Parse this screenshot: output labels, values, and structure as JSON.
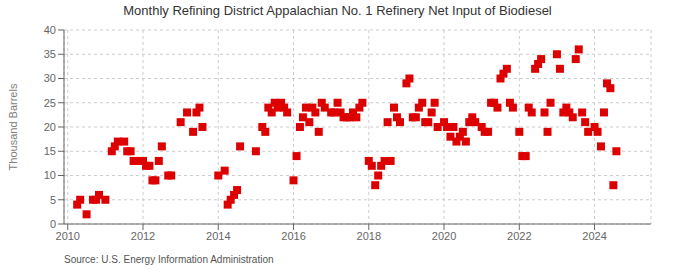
{
  "chart_data": {
    "type": "scatter",
    "title": "Monthly Refining District Appalachian No. 1 Refinery Net Input of Biodiesel",
    "y_label": "Thousand Barrels",
    "annotations": [
      "Source: U.S. Energy Information Administration"
    ],
    "color": "#dd0000",
    "marker": "square",
    "grid": true,
    "xlim": [
      2009.9,
      2025.5
    ],
    "xticks": [
      2010,
      2012,
      2014,
      2016,
      2018,
      2020,
      2022,
      2024
    ],
    "ylim": [
      0,
      40
    ],
    "yticks": [
      0,
      5,
      10,
      15,
      20,
      25,
      30,
      35,
      40
    ],
    "x": [
      2010.25,
      2010.33,
      2010.5,
      2010.67,
      2010.75,
      2010.83,
      2011.0,
      2011.17,
      2011.25,
      2011.33,
      2011.5,
      2011.58,
      2011.67,
      2011.75,
      2011.83,
      2012.0,
      2012.08,
      2012.17,
      2012.25,
      2012.33,
      2012.42,
      2012.5,
      2012.67,
      2012.75,
      2013.0,
      2013.17,
      2013.33,
      2013.42,
      2013.5,
      2013.58,
      2014.0,
      2014.17,
      2014.25,
      2014.33,
      2014.42,
      2014.5,
      2014.58,
      2015.0,
      2015.17,
      2015.25,
      2015.33,
      2015.42,
      2015.5,
      2015.58,
      2015.67,
      2015.75,
      2015.83,
      2016.0,
      2016.08,
      2016.17,
      2016.25,
      2016.33,
      2016.42,
      2016.5,
      2016.58,
      2016.67,
      2016.75,
      2016.83,
      2017.0,
      2017.08,
      2017.17,
      2017.25,
      2017.33,
      2017.42,
      2017.5,
      2017.58,
      2017.67,
      2017.75,
      2017.83,
      2018.0,
      2018.08,
      2018.17,
      2018.25,
      2018.33,
      2018.42,
      2018.5,
      2018.58,
      2018.67,
      2018.75,
      2018.83,
      2019.0,
      2019.08,
      2019.17,
      2019.25,
      2019.33,
      2019.42,
      2019.5,
      2019.58,
      2019.67,
      2019.75,
      2019.83,
      2020.0,
      2020.08,
      2020.17,
      2020.25,
      2020.33,
      2020.42,
      2020.5,
      2020.58,
      2020.67,
      2020.75,
      2020.83,
      2021.0,
      2021.08,
      2021.17,
      2021.25,
      2021.33,
      2021.42,
      2021.5,
      2021.58,
      2021.67,
      2021.75,
      2021.83,
      2022.0,
      2022.08,
      2022.17,
      2022.25,
      2022.33,
      2022.42,
      2022.5,
      2022.58,
      2022.67,
      2022.75,
      2022.83,
      2023.0,
      2023.08,
      2023.17,
      2023.25,
      2023.33,
      2023.42,
      2023.5,
      2023.58,
      2023.67,
      2023.75,
      2023.83,
      2024.0,
      2024.08,
      2024.17,
      2024.25,
      2024.33,
      2024.42,
      2024.5,
      2024.58
    ],
    "values": [
      4,
      5,
      2,
      5,
      5,
      6,
      5,
      15,
      16,
      17,
      17,
      15,
      15,
      13,
      13,
      13,
      12,
      12,
      9,
      9,
      13,
      16,
      10,
      10,
      21,
      23,
      19,
      23,
      24,
      20,
      10,
      11,
      4,
      5,
      6,
      7,
      16,
      15,
      20,
      19,
      24,
      23,
      25,
      24,
      25,
      24,
      23,
      9,
      14,
      20,
      22,
      24,
      21,
      24,
      23,
      19,
      25,
      24,
      23,
      23,
      25,
      23,
      22,
      22,
      22,
      23,
      22,
      24,
      25,
      13,
      12,
      8,
      10,
      12,
      13,
      21,
      13,
      24,
      22,
      21,
      29,
      30,
      22,
      22,
      24,
      25,
      21,
      21,
      23,
      25,
      20,
      21,
      20,
      18,
      20,
      17,
      18,
      19,
      17,
      21,
      22,
      21,
      20,
      19,
      19,
      25,
      25,
      24,
      30,
      31,
      32,
      25,
      24,
      19,
      14,
      14,
      24,
      23,
      32,
      33,
      34,
      23,
      19,
      25,
      35,
      32,
      23,
      24,
      23,
      22,
      34,
      36,
      23,
      21,
      19,
      20,
      19,
      16,
      23,
      29,
      28,
      8,
      15
    ]
  }
}
